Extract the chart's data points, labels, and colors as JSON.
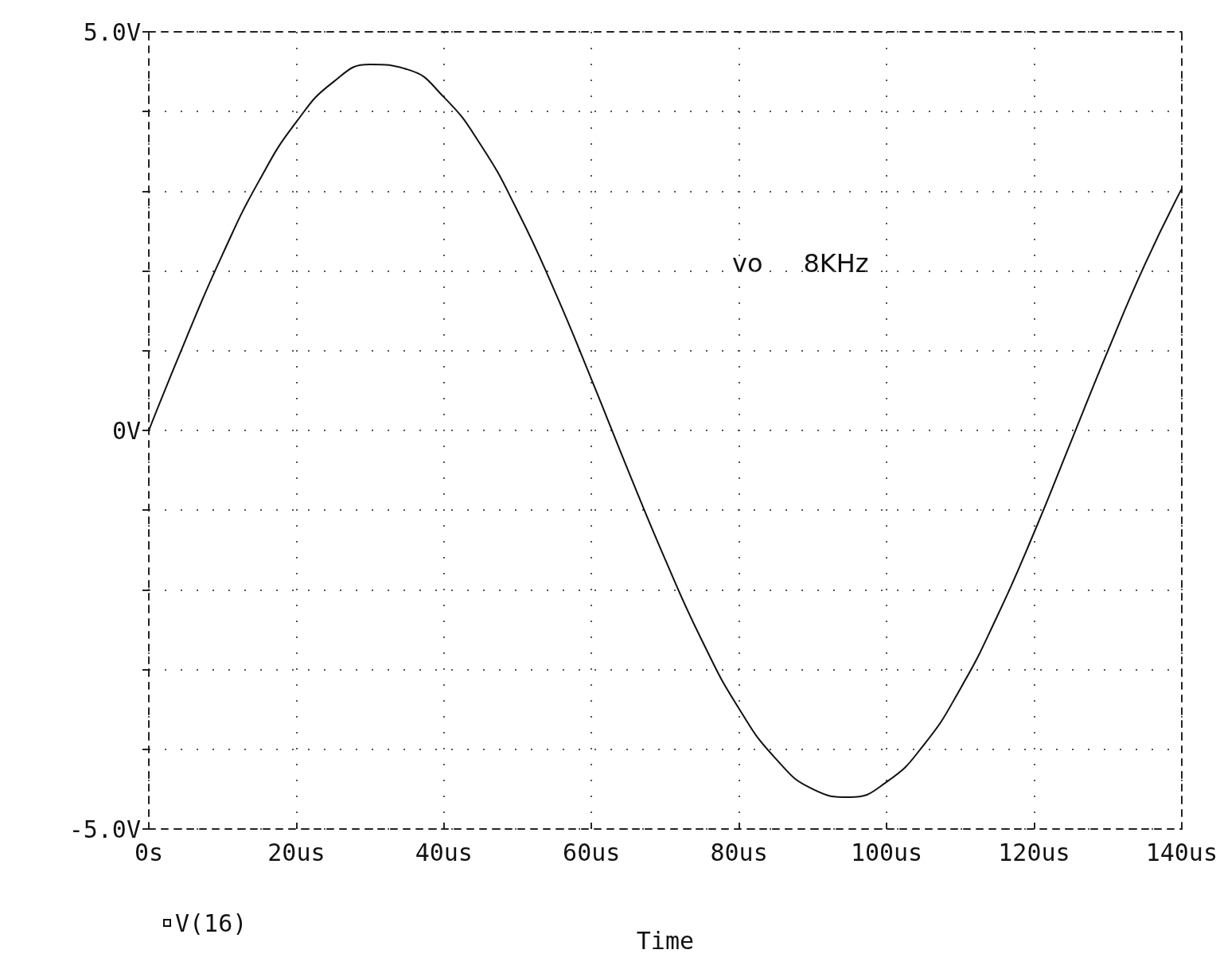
{
  "chart_data": {
    "type": "line",
    "xlabel": "Time",
    "annotations": [
      "vo     8KHz"
    ],
    "x": [
      0,
      5,
      10,
      15,
      20,
      25,
      30,
      35,
      40,
      45,
      50,
      55,
      60,
      65,
      70,
      75,
      80,
      85,
      90,
      95,
      100,
      105,
      110,
      115,
      120,
      125,
      130,
      135,
      140
    ],
    "series": [
      {
        "name": "V(16)",
        "color": "#111111",
        "values": [
          0,
          1.14,
          2.21,
          3.14,
          3.87,
          4.37,
          4.59,
          4.53,
          4.18,
          3.58,
          2.75,
          1.75,
          0.64,
          -0.51,
          -1.62,
          -2.64,
          -3.49,
          -4.12,
          -4.5,
          -4.6,
          -4.41,
          -3.95,
          -3.24,
          -2.33,
          -1.28,
          -0.14,
          1.0,
          2.08,
          3.03
        ]
      }
    ],
    "xlim": [
      0,
      140
    ],
    "xticks": [
      {
        "value": 0,
        "label": "0s"
      },
      {
        "value": 20,
        "label": "20us"
      },
      {
        "value": 40,
        "label": "40us"
      },
      {
        "value": 60,
        "label": "60us"
      },
      {
        "value": 80,
        "label": "80us"
      },
      {
        "value": 100,
        "label": "100us"
      },
      {
        "value": 120,
        "label": "120us"
      },
      {
        "value": 140,
        "label": "140us"
      }
    ],
    "ylim": [
      -5,
      5
    ],
    "yticks": [
      {
        "value": -5,
        "label": "-5.0V"
      },
      {
        "value": -4,
        "label": null
      },
      {
        "value": -3,
        "label": null
      },
      {
        "value": -2,
        "label": null
      },
      {
        "value": -1,
        "label": null
      },
      {
        "value": 0,
        "label": "0V"
      },
      {
        "value": 1,
        "label": null
      },
      {
        "value": 2,
        "label": null
      },
      {
        "value": 3,
        "label": null
      },
      {
        "value": 4,
        "label": null
      },
      {
        "value": 5,
        "label": "5.0V"
      }
    ],
    "grid": true,
    "legend": "bottom left",
    "marker": "none",
    "line_style": "solid"
  }
}
